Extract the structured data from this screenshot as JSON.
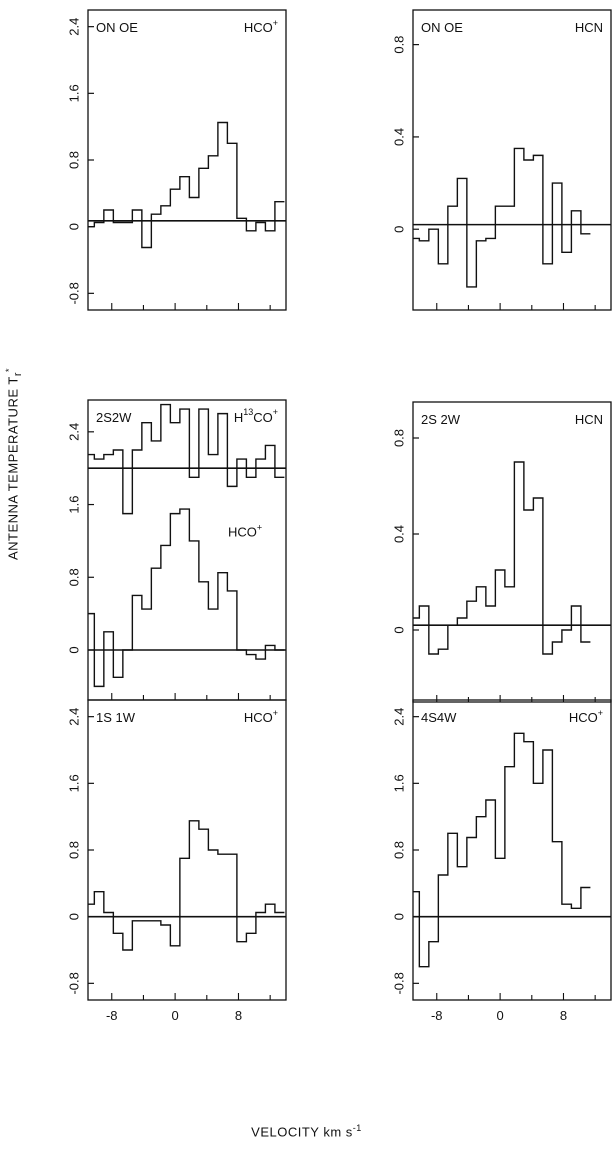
{
  "figure": {
    "ylabel_main": "ANTENNA TEMPERATURE T",
    "ylabel_sub": "r",
    "ylabel_sup": "*",
    "xlabel_main": "VELOCITY km s",
    "xlabel_sup": "-1"
  },
  "chart_data": [
    {
      "type": "line",
      "title": "ON OE",
      "molecule": "HCO+",
      "series": [
        {
          "name": "HCO+",
          "x": [
            -10.8,
            -9.6,
            -8.4,
            -7.2,
            -6.0,
            -4.8,
            -3.6,
            -2.4,
            -1.2,
            0.0,
            1.2,
            2.4,
            3.6,
            4.8,
            6.0,
            7.2,
            8.4,
            9.6,
            10.8,
            12.0,
            13.2
          ],
          "y": [
            0.0,
            0.05,
            0.2,
            0.05,
            0.05,
            0.2,
            -0.25,
            0.15,
            0.25,
            0.45,
            0.6,
            0.35,
            0.7,
            0.85,
            1.25,
            1.0,
            0.1,
            -0.05,
            0.05,
            -0.05,
            0.3
          ],
          "baseline": 0.07
        }
      ],
      "yticks": [
        "2.4",
        "1.6",
        "0.8",
        "0",
        "-0.8"
      ],
      "ylim": [
        -1.0,
        2.6
      ],
      "xlim": [
        -11.0,
        14.0
      ],
      "xticks": [
        "-8",
        "0",
        "8"
      ],
      "show_xticklabels": false
    },
    {
      "type": "line",
      "title": "ON OE",
      "molecule": "HCN",
      "series": [
        {
          "name": "HCN",
          "x": [
            -10.8,
            -9.6,
            -8.4,
            -7.2,
            -6.0,
            -4.8,
            -3.6,
            -2.4,
            -1.2,
            0.0,
            1.2,
            2.4,
            3.6,
            4.8,
            6.0,
            7.2,
            8.4,
            9.6,
            10.8
          ],
          "y": [
            -0.04,
            -0.05,
            0.0,
            -0.15,
            0.1,
            0.22,
            -0.25,
            -0.05,
            -0.04,
            0.1,
            0.1,
            0.35,
            0.3,
            0.32,
            -0.15,
            0.2,
            -0.1,
            0.08,
            -0.02
          ],
          "baseline": 0.02
        }
      ],
      "yticks": [
        "0.8",
        "0.4",
        "0"
      ],
      "ylim": [
        -0.35,
        0.95
      ],
      "xlim": [
        -11.0,
        14.0
      ],
      "xticks": [
        "-8",
        "0",
        "8"
      ],
      "show_xticklabels": false
    },
    {
      "type": "line",
      "title": "2S2W",
      "molecule": "H13CO+ / HCO+",
      "series": [
        {
          "name": "H13CO+",
          "x": [
            -10.8,
            -9.6,
            -8.4,
            -7.2,
            -6.0,
            -4.8,
            -3.6,
            -2.4,
            -1.2,
            0.0,
            1.2,
            2.4,
            3.6,
            4.8,
            6.0,
            7.2,
            8.4,
            9.6,
            10.8,
            12.0,
            13.2
          ],
          "y": [
            2.15,
            2.1,
            2.15,
            2.2,
            1.5,
            2.2,
            2.5,
            2.3,
            2.7,
            2.5,
            2.65,
            1.9,
            2.65,
            2.15,
            2.6,
            1.8,
            2.1,
            1.9,
            2.1,
            2.25,
            1.9
          ],
          "baseline": 2.0
        },
        {
          "name": "HCO+",
          "x": [
            -10.8,
            -9.6,
            -8.4,
            -7.2,
            -6.0,
            -4.8,
            -3.6,
            -2.4,
            -1.2,
            0.0,
            1.2,
            2.4,
            3.6,
            4.8,
            6.0,
            7.2,
            8.4,
            9.6,
            10.8,
            12.0,
            13.2
          ],
          "y": [
            0.4,
            -0.4,
            0.2,
            -0.3,
            0.0,
            0.6,
            0.45,
            0.9,
            1.15,
            1.5,
            1.55,
            1.2,
            0.75,
            0.45,
            0.85,
            0.65,
            0.0,
            -0.05,
            -0.1,
            0.05,
            0.0
          ],
          "baseline": 0.0
        }
      ],
      "yticks": [
        "2.4",
        "1.6",
        "0.8",
        "0"
      ],
      "ylim": [
        -0.55,
        2.75
      ],
      "xlim": [
        -11.0,
        14.0
      ],
      "xticks": [
        "-8",
        "0",
        "8"
      ],
      "show_xticklabels": false
    },
    {
      "type": "line",
      "title": "2S 2W",
      "molecule": "HCN",
      "series": [
        {
          "name": "HCN",
          "x": [
            -10.8,
            -9.6,
            -8.4,
            -7.2,
            -6.0,
            -4.8,
            -3.6,
            -2.4,
            -1.2,
            0.0,
            1.2,
            2.4,
            3.6,
            4.8,
            6.0,
            7.2,
            8.4,
            9.6,
            10.8
          ],
          "y": [
            0.05,
            0.1,
            -0.1,
            -0.08,
            0.02,
            0.05,
            0.12,
            0.18,
            0.1,
            0.25,
            0.18,
            0.7,
            0.5,
            0.55,
            -0.1,
            -0.05,
            0.0,
            0.1,
            -0.05
          ],
          "baseline": 0.02
        }
      ],
      "yticks": [
        "0.8",
        "0.4",
        "0"
      ],
      "ylim": [
        -0.3,
        0.95
      ],
      "xlim": [
        -11.0,
        14.0
      ],
      "xticks": [
        "-8",
        "0",
        "8"
      ],
      "show_xticklabels": false
    },
    {
      "type": "line",
      "title": "1S 1W",
      "molecule": "HCO+",
      "series": [
        {
          "name": "HCO+",
          "x": [
            -10.8,
            -9.6,
            -8.4,
            -7.2,
            -6.0,
            -4.8,
            -3.6,
            -2.4,
            -1.2,
            0.0,
            1.2,
            2.4,
            3.6,
            4.8,
            6.0,
            7.2,
            8.4,
            9.6,
            10.8,
            12.0,
            13.2
          ],
          "y": [
            0.15,
            0.3,
            0.05,
            -0.2,
            -0.4,
            -0.05,
            -0.05,
            -0.05,
            -0.1,
            -0.35,
            0.7,
            1.15,
            1.05,
            0.8,
            0.75,
            0.75,
            -0.3,
            -0.2,
            0.05,
            0.15,
            0.05
          ],
          "baseline": 0.0
        }
      ],
      "yticks": [
        "2.4",
        "1.6",
        "0.8",
        "0",
        "-0.8"
      ],
      "ylim": [
        -1.0,
        2.6
      ],
      "xlim": [
        -11.0,
        14.0
      ],
      "xticks": [
        "-8",
        "0",
        "8"
      ],
      "show_xticklabels": true
    },
    {
      "type": "line",
      "title": "4S4W",
      "molecule": "HCO+",
      "series": [
        {
          "name": "HCO+",
          "x": [
            -10.8,
            -9.6,
            -8.4,
            -7.2,
            -6.0,
            -4.8,
            -3.6,
            -2.4,
            -1.2,
            0.0,
            1.2,
            2.4,
            3.6,
            4.8,
            6.0,
            7.2,
            8.4,
            9.6,
            10.8
          ],
          "y": [
            0.3,
            -0.6,
            -0.3,
            0.5,
            1.0,
            0.6,
            0.95,
            1.2,
            1.4,
            0.7,
            1.8,
            2.2,
            2.1,
            1.6,
            2.0,
            0.9,
            0.15,
            0.1,
            0.35
          ],
          "baseline": 0.0
        }
      ],
      "yticks": [
        "2.4",
        "1.6",
        "0.8",
        "0",
        "-0.8"
      ],
      "ylim": [
        -1.0,
        2.6
      ],
      "xlim": [
        -11.0,
        14.0
      ],
      "xticks": [
        "-8",
        "0",
        "8"
      ],
      "show_xticklabels": true
    }
  ]
}
